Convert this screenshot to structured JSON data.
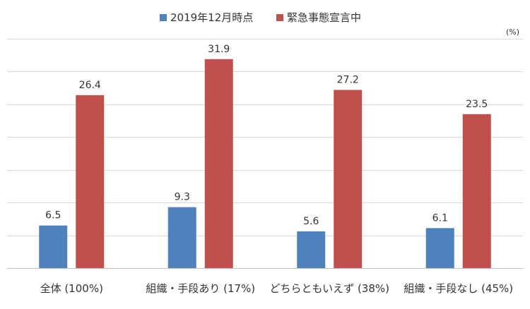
{
  "chart_data": {
    "type": "bar",
    "unit_label": "(%)",
    "categories": [
      "全体 (100%)",
      "組織・手段あり (17%)",
      "どちらともいえず (38%)",
      "組織・手段なし (45%)"
    ],
    "series": [
      {
        "name": "2019年12月時点",
        "color": "#4F81BD",
        "values": [
          6.5,
          9.3,
          5.6,
          6.1
        ]
      },
      {
        "name": "緊急事態宣言中",
        "color": "#C0504D",
        "values": [
          26.4,
          31.9,
          27.2,
          23.5
        ]
      }
    ],
    "ylim": [
      0,
      35
    ],
    "grid": true,
    "legend_position": "top-center"
  }
}
